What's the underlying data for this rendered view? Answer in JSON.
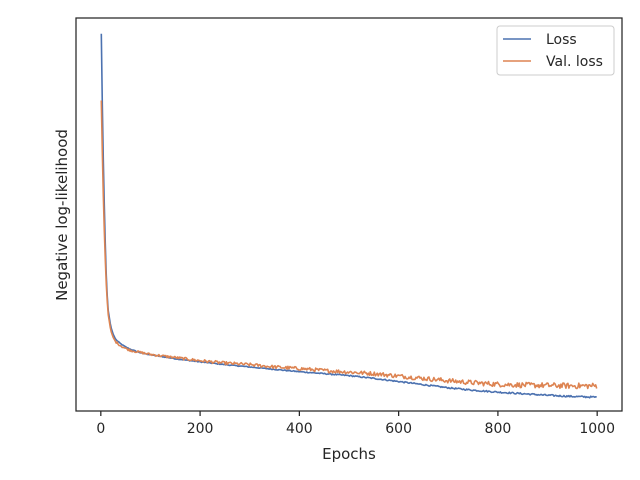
{
  "chart_data": {
    "type": "line",
    "title": "",
    "xlabel": "Epochs",
    "ylabel": "Negative log-likelihood",
    "xlim": [
      -50,
      1050
    ],
    "ylim": [
      0.0,
      1.0
    ],
    "x_ticks": [
      0,
      200,
      400,
      600,
      800,
      1000
    ],
    "y_ticks_visible": false,
    "grid": false,
    "legend_position": "top-right",
    "series": [
      {
        "name": "Loss",
        "color": "#4c72b0",
        "points": [
          [
            1,
            0.96
          ],
          [
            2,
            0.86
          ],
          [
            4,
            0.7
          ],
          [
            6,
            0.58
          ],
          [
            8,
            0.47
          ],
          [
            10,
            0.38
          ],
          [
            12,
            0.31
          ],
          [
            15,
            0.255
          ],
          [
            20,
            0.215
          ],
          [
            25,
            0.195
          ],
          [
            30,
            0.182
          ],
          [
            40,
            0.171
          ],
          [
            50,
            0.163
          ],
          [
            60,
            0.157
          ],
          [
            80,
            0.148
          ],
          [
            100,
            0.143
          ],
          [
            150,
            0.133
          ],
          [
            200,
            0.125
          ],
          [
            250,
            0.118
          ],
          [
            300,
            0.112
          ],
          [
            350,
            0.106
          ],
          [
            400,
            0.1
          ],
          [
            450,
            0.095
          ],
          [
            500,
            0.09
          ],
          [
            550,
            0.083
          ],
          [
            600,
            0.075
          ],
          [
            650,
            0.067
          ],
          [
            700,
            0.059
          ],
          [
            750,
            0.053
          ],
          [
            800,
            0.048
          ],
          [
            850,
            0.044
          ],
          [
            900,
            0.04
          ],
          [
            950,
            0.037
          ],
          [
            1000,
            0.035
          ]
        ],
        "noise": 0.0015
      },
      {
        "name": "Val. loss",
        "color": "#dd8452",
        "points": [
          [
            1,
            0.79
          ],
          [
            2,
            0.72
          ],
          [
            4,
            0.6
          ],
          [
            6,
            0.5
          ],
          [
            8,
            0.42
          ],
          [
            10,
            0.35
          ],
          [
            12,
            0.295
          ],
          [
            15,
            0.245
          ],
          [
            20,
            0.205
          ],
          [
            25,
            0.187
          ],
          [
            30,
            0.176
          ],
          [
            40,
            0.166
          ],
          [
            50,
            0.159
          ],
          [
            60,
            0.154
          ],
          [
            80,
            0.149
          ],
          [
            100,
            0.144
          ],
          [
            150,
            0.136
          ],
          [
            200,
            0.128
          ],
          [
            250,
            0.122
          ],
          [
            300,
            0.118
          ],
          [
            350,
            0.112
          ],
          [
            400,
            0.108
          ],
          [
            450,
            0.103
          ],
          [
            500,
            0.099
          ],
          [
            550,
            0.095
          ],
          [
            600,
            0.089
          ],
          [
            650,
            0.083
          ],
          [
            700,
            0.077
          ],
          [
            750,
            0.072
          ],
          [
            800,
            0.068
          ],
          [
            850,
            0.066
          ],
          [
            900,
            0.065
          ],
          [
            950,
            0.064
          ],
          [
            1000,
            0.064
          ]
        ],
        "noise": 0.005
      }
    ]
  }
}
